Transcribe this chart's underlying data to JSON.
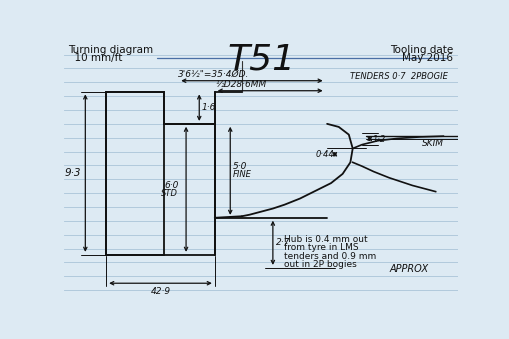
{
  "title": "T51",
  "top_left_line1": "Turning diagram",
  "top_left_line2": "  10 mm/ft",
  "top_right_line1": "Tooling date",
  "top_right_line2": "May 2016",
  "dim_35_4": "3'6½\"=35·4ØD.",
  "dim_28_6": "½D28·6MM",
  "dim_9_3": "9·3",
  "dim_1_6": "1·6",
  "dim_5_0": "5·0",
  "dim_fine": "FINE",
  "dim_6_0": "6·0",
  "dim_std": "STD",
  "dim_2_7": "2·7",
  "dim_42_9": "42·9",
  "dim_tenders": "TENDERS 0·7  2PBOGIE",
  "dim_1_2": "1·2",
  "dim_0_44": "0·44",
  "dim_skim": "SKIM",
  "note1": "Hub is 0.4 mm out",
  "note2": "from tyre in LMS",
  "note3": "tenders and 0.9 mm",
  "note4": "out in 2P bogies",
  "approx": "APPROX",
  "bg_color": "#ddeaf3",
  "line_color": "#111111",
  "ruled_line_color": "#aac4d8",
  "blue_line_color": "#4a6fa5"
}
